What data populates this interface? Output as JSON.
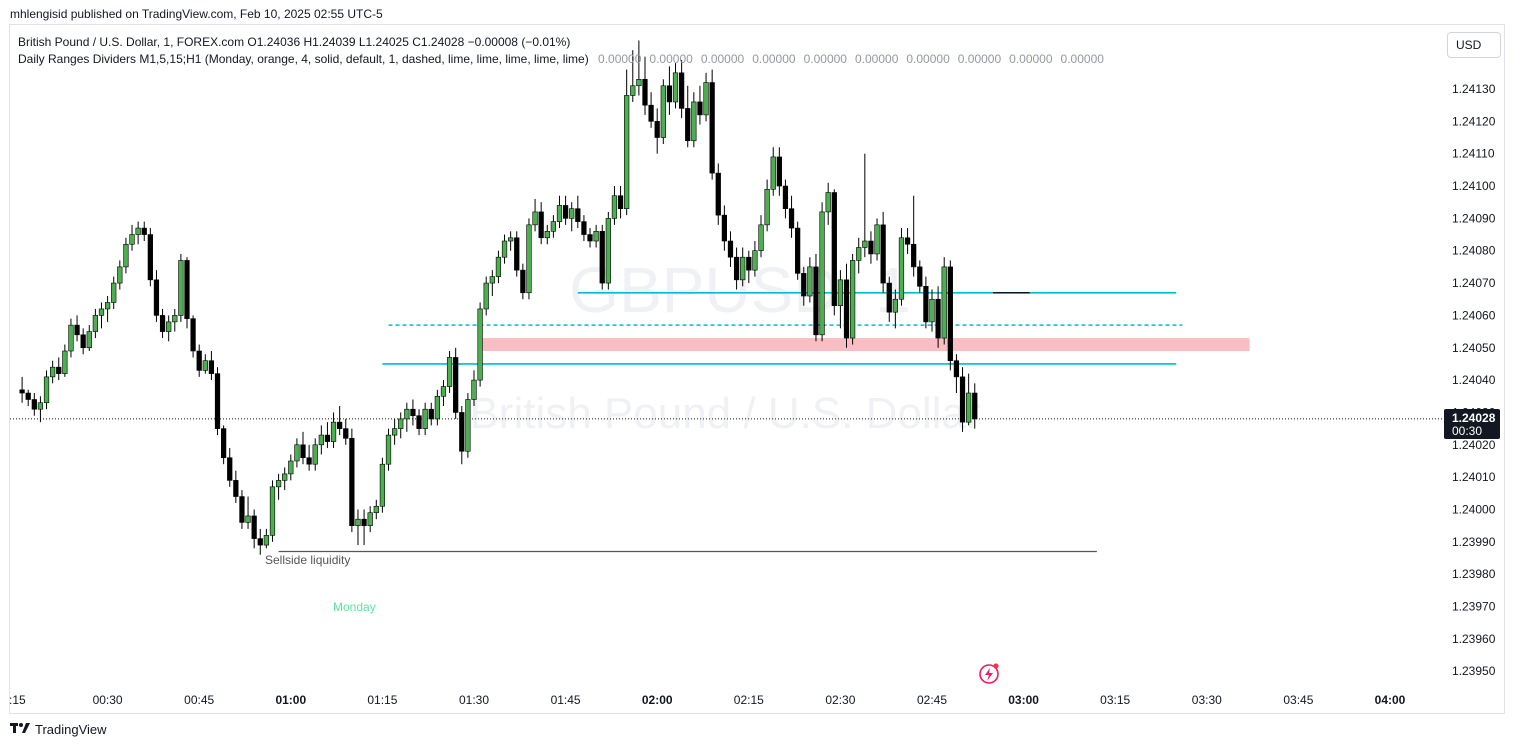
{
  "publish_line": "mhlengisid published on TradingView.com, Feb 10, 2025 02:55 UTC-5",
  "legend": {
    "symbol_line": "British Pound / U.S. Dollar, 1, FOREX.com  O1.24036  H1.24039  L1.24025  C1.24028  −0.00008 (−0.01%)",
    "indicator_line": "Daily Ranges Dividers M1,5,15;H1 (Monday, orange, 4, solid, default, 1, dashed, lime, lime, lime, lime, lime)",
    "indicator_values": [
      "0.00000",
      "0.00000",
      "0.00000",
      "0.00000",
      "0.00000",
      "0.00000",
      "0.00000",
      "0.00000",
      "0.00000",
      "0.00000"
    ]
  },
  "currency_button": "USD",
  "watermark": {
    "ticker": "GBPUSD, 1",
    "name": "British Pound / U.S. Dollar"
  },
  "annotations": {
    "sellside": "Sellside liquidity",
    "day_label": "Monday"
  },
  "price_label": {
    "price": "1.24028",
    "countdown": "00:30"
  },
  "footer": {
    "brand": "TradingView"
  },
  "colors": {
    "bull": "#4caf50",
    "bear": "#000000",
    "level": "#00bcd4",
    "zone": "#f8bbc0",
    "day": "#5fe3a1",
    "spark": "#e91e63"
  },
  "chart_data": {
    "type": "candlestick",
    "symbol": "British Pound / U.S. Dollar",
    "interval": "1",
    "ylim": [
      1.23942,
      1.24147
    ],
    "y_ticks": [
      "1.24130",
      "1.24120",
      "1.24110",
      "1.24100",
      "1.24090",
      "1.24080",
      "1.24070",
      "1.24060",
      "1.24050",
      "1.24040",
      "1.24030",
      "1.24020",
      "1.24010",
      "1.24000",
      "1.23990",
      "1.23980",
      "1.23970",
      "1.23960",
      "1.23950"
    ],
    "x_ticks": [
      {
        "label": ":15",
        "bold": false
      },
      {
        "label": "00:30",
        "bold": false
      },
      {
        "label": "00:45",
        "bold": false
      },
      {
        "label": "01:00",
        "bold": true
      },
      {
        "label": "01:15",
        "bold": false
      },
      {
        "label": "01:30",
        "bold": false
      },
      {
        "label": "01:45",
        "bold": false
      },
      {
        "label": "02:00",
        "bold": true
      },
      {
        "label": "02:15",
        "bold": false
      },
      {
        "label": "02:30",
        "bold": false
      },
      {
        "label": "02:45",
        "bold": false
      },
      {
        "label": "03:00",
        "bold": true
      },
      {
        "label": "03:15",
        "bold": false
      },
      {
        "label": "03:30",
        "bold": false
      },
      {
        "label": "03:45",
        "bold": false
      },
      {
        "label": "04:00",
        "bold": true
      }
    ],
    "first_bar_time": "00:16",
    "last_close": 1.24028,
    "levels": [
      {
        "price": 1.24067,
        "from": "01:47",
        "to": "03:25",
        "style": "solid"
      },
      {
        "price": 1.24045,
        "from": "01:15",
        "to": "03:25",
        "style": "solid"
      },
      {
        "price": 1.24057,
        "from": "01:16",
        "to": "03:26",
        "style": "dashed"
      },
      {
        "price": 1.23987,
        "from": "00:58",
        "to": "03:12",
        "style": "solid",
        "color": "#555555"
      },
      {
        "price": 1.24067,
        "from": "02:55",
        "to": "03:01",
        "style": "solid",
        "color": "#000000"
      }
    ],
    "zone": {
      "top": 1.24053,
      "bottom": 1.24049,
      "from": "01:31",
      "to": "03:37"
    },
    "bars": [
      [
        1.24037,
        1.24041,
        1.24033,
        1.24036
      ],
      [
        1.24036,
        1.24037,
        1.24032,
        1.24034
      ],
      [
        1.24034,
        1.24036,
        1.24029,
        1.24031
      ],
      [
        1.24031,
        1.24035,
        1.24027,
        1.24033
      ],
      [
        1.24033,
        1.24043,
        1.24031,
        1.24041
      ],
      [
        1.24041,
        1.24046,
        1.24039,
        1.24044
      ],
      [
        1.24044,
        1.24047,
        1.2404,
        1.24042
      ],
      [
        1.24042,
        1.24051,
        1.24041,
        1.24049
      ],
      [
        1.24049,
        1.24059,
        1.24047,
        1.24057
      ],
      [
        1.24057,
        1.2406,
        1.24052,
        1.24054
      ],
      [
        1.24054,
        1.24056,
        1.24048,
        1.2405
      ],
      [
        1.2405,
        1.24057,
        1.24049,
        1.24055
      ],
      [
        1.24055,
        1.24062,
        1.24053,
        1.2406
      ],
      [
        1.2406,
        1.24064,
        1.24056,
        1.24062
      ],
      [
        1.24062,
        1.24066,
        1.24058,
        1.24064
      ],
      [
        1.24064,
        1.24072,
        1.24062,
        1.2407
      ],
      [
        1.2407,
        1.24077,
        1.24068,
        1.24075
      ],
      [
        1.24075,
        1.24084,
        1.24073,
        1.24082
      ],
      [
        1.24082,
        1.24088,
        1.2408,
        1.24085
      ],
      [
        1.24085,
        1.24089,
        1.24082,
        1.24087
      ],
      [
        1.24087,
        1.24089,
        1.24083,
        1.24085
      ],
      [
        1.24085,
        1.24087,
        1.24069,
        1.24071
      ],
      [
        1.24071,
        1.24074,
        1.24058,
        1.2406
      ],
      [
        1.2406,
        1.24062,
        1.24053,
        1.24055
      ],
      [
        1.24055,
        1.2406,
        1.24052,
        1.24058
      ],
      [
        1.24058,
        1.24062,
        1.24055,
        1.2406
      ],
      [
        1.2406,
        1.24079,
        1.24058,
        1.24077
      ],
      [
        1.24077,
        1.24078,
        1.24056,
        1.24059
      ],
      [
        1.24059,
        1.2406,
        1.24047,
        1.24049
      ],
      [
        1.24049,
        1.24051,
        1.24041,
        1.24043
      ],
      [
        1.24043,
        1.24048,
        1.24042,
        1.24046
      ],
      [
        1.24046,
        1.24049,
        1.2404,
        1.24042
      ],
      [
        1.24042,
        1.24044,
        1.24023,
        1.24025
      ],
      [
        1.24025,
        1.24026,
        1.24014,
        1.24016
      ],
      [
        1.24016,
        1.24019,
        1.24007,
        1.24009
      ],
      [
        1.24009,
        1.24012,
        1.24002,
        1.24004
      ],
      [
        1.24004,
        1.24006,
        1.23994,
        1.23996
      ],
      [
        1.23996,
        1.24004,
        1.23994,
        1.23998
      ],
      [
        1.23998,
        1.24,
        1.23988,
        1.23991
      ],
      [
        1.23991,
        1.23994,
        1.23986,
        1.23989
      ],
      [
        1.23989,
        1.23994,
        1.23988,
        1.23992
      ],
      [
        1.23992,
        1.24009,
        1.2399,
        1.24007
      ],
      [
        1.24007,
        1.24011,
        1.24003,
        1.24009
      ],
      [
        1.24009,
        1.24013,
        1.24006,
        1.24011
      ],
      [
        1.24011,
        1.24017,
        1.24009,
        1.24015
      ],
      [
        1.24015,
        1.24022,
        1.24013,
        1.2402
      ],
      [
        1.2402,
        1.24024,
        1.24014,
        1.24016
      ],
      [
        1.24016,
        1.2402,
        1.24012,
        1.24014
      ],
      [
        1.24014,
        1.24022,
        1.24012,
        1.2402
      ],
      [
        1.2402,
        1.24026,
        1.24017,
        1.24023
      ],
      [
        1.24023,
        1.24027,
        1.24019,
        1.24021
      ],
      [
        1.24021,
        1.2403,
        1.24019,
        1.24027
      ],
      [
        1.24027,
        1.24032,
        1.24023,
        1.24025
      ],
      [
        1.24025,
        1.24028,
        1.2402,
        1.24022
      ],
      [
        1.24022,
        1.24025,
        1.23993,
        1.23995
      ],
      [
        1.23995,
        1.24,
        1.23989,
        1.23997
      ],
      [
        1.23997,
        1.24,
        1.23989,
        1.23995
      ],
      [
        1.23995,
        1.24001,
        1.23993,
        1.23999
      ],
      [
        1.23999,
        1.24003,
        1.23997,
        1.24001
      ],
      [
        1.24001,
        1.24016,
        1.23999,
        1.24014
      ],
      [
        1.24014,
        1.24025,
        1.24012,
        1.24023
      ],
      [
        1.24023,
        1.24028,
        1.2402,
        1.24025
      ],
      [
        1.24025,
        1.2403,
        1.24022,
        1.24028
      ],
      [
        1.24028,
        1.24033,
        1.24024,
        1.24031
      ],
      [
        1.24031,
        1.24034,
        1.24026,
        1.24029
      ],
      [
        1.24029,
        1.24031,
        1.24023,
        1.24025
      ],
      [
        1.24025,
        1.24033,
        1.24023,
        1.24031
      ],
      [
        1.24031,
        1.24033,
        1.24026,
        1.24028
      ],
      [
        1.24028,
        1.24037,
        1.24026,
        1.24035
      ],
      [
        1.24035,
        1.2404,
        1.24032,
        1.24038
      ],
      [
        1.24038,
        1.24049,
        1.24036,
        1.24047
      ],
      [
        1.24047,
        1.2405,
        1.24028,
        1.2403
      ],
      [
        1.2403,
        1.24032,
        1.24014,
        1.24018
      ],
      [
        1.24018,
        1.24036,
        1.24016,
        1.24034
      ],
      [
        1.24034,
        1.24043,
        1.24032,
        1.2404
      ],
      [
        1.2404,
        1.24064,
        1.24038,
        1.24062
      ],
      [
        1.24062,
        1.24072,
        1.2406,
        1.2407
      ],
      [
        1.2407,
        1.24074,
        1.24066,
        1.24072
      ],
      [
        1.24072,
        1.2408,
        1.2407,
        1.24078
      ],
      [
        1.24078,
        1.24085,
        1.24076,
        1.24083
      ],
      [
        1.24083,
        1.24086,
        1.2408,
        1.24084
      ],
      [
        1.24084,
        1.24086,
        1.24072,
        1.24074
      ],
      [
        1.24074,
        1.24076,
        1.24065,
        1.24067
      ],
      [
        1.24067,
        1.2409,
        1.24065,
        1.24088
      ],
      [
        1.24088,
        1.24096,
        1.24086,
        1.24092
      ],
      [
        1.24092,
        1.24095,
        1.24082,
        1.24084
      ],
      [
        1.24084,
        1.24088,
        1.24082,
        1.24086
      ],
      [
        1.24086,
        1.24091,
        1.24084,
        1.24089
      ],
      [
        1.24089,
        1.24097,
        1.24087,
        1.24094
      ],
      [
        1.24094,
        1.24097,
        1.24088,
        1.2409
      ],
      [
        1.2409,
        1.24095,
        1.24086,
        1.24093
      ],
      [
        1.24093,
        1.24097,
        1.24087,
        1.24089
      ],
      [
        1.24089,
        1.24091,
        1.24083,
        1.24085
      ],
      [
        1.24085,
        1.24087,
        1.24081,
        1.24083
      ],
      [
        1.24083,
        1.24088,
        1.24081,
        1.24086
      ],
      [
        1.24086,
        1.24088,
        1.24068,
        1.2407
      ],
      [
        1.2407,
        1.24092,
        1.24068,
        1.2409
      ],
      [
        1.2409,
        1.241,
        1.24088,
        1.24097
      ],
      [
        1.24097,
        1.241,
        1.2409,
        1.24093
      ],
      [
        1.24093,
        1.24136,
        1.24091,
        1.24128
      ],
      [
        1.24128,
        1.24142,
        1.24126,
        1.24131
      ],
      [
        1.24131,
        1.24145,
        1.24128,
        1.24133
      ],
      [
        1.24133,
        1.2414,
        1.24122,
        1.24125
      ],
      [
        1.24125,
        1.24129,
        1.24118,
        1.2412
      ],
      [
        1.2412,
        1.24124,
        1.2411,
        1.24115
      ],
      [
        1.24115,
        1.24133,
        1.24113,
        1.24131
      ],
      [
        1.24131,
        1.24137,
        1.24122,
        1.24126
      ],
      [
        1.24126,
        1.24138,
        1.24124,
        1.24135
      ],
      [
        1.24135,
        1.24139,
        1.24121,
        1.24124
      ],
      [
        1.24124,
        1.24131,
        1.24112,
        1.24114
      ],
      [
        1.24114,
        1.24129,
        1.24112,
        1.24126
      ],
      [
        1.24126,
        1.24131,
        1.24119,
        1.24122
      ],
      [
        1.24122,
        1.24135,
        1.2412,
        1.24132
      ],
      [
        1.24132,
        1.24136,
        1.24102,
        1.24104
      ],
      [
        1.24104,
        1.24107,
        1.24088,
        1.24091
      ],
      [
        1.24091,
        1.24094,
        1.2408,
        1.24083
      ],
      [
        1.24083,
        1.24086,
        1.24075,
        1.24078
      ],
      [
        1.24078,
        1.24081,
        1.24068,
        1.24071
      ],
      [
        1.24071,
        1.24081,
        1.24069,
        1.24078
      ],
      [
        1.24078,
        1.2408,
        1.2407,
        1.24074
      ],
      [
        1.24074,
        1.24083,
        1.24072,
        1.2408
      ],
      [
        1.2408,
        1.24091,
        1.24078,
        1.24088
      ],
      [
        1.24088,
        1.24102,
        1.24086,
        1.24099
      ],
      [
        1.24099,
        1.24112,
        1.24097,
        1.24109
      ],
      [
        1.24109,
        1.24112,
        1.24097,
        1.241
      ],
      [
        1.241,
        1.24102,
        1.2409,
        1.24093
      ],
      [
        1.24093,
        1.24097,
        1.24084,
        1.24087
      ],
      [
        1.24087,
        1.24089,
        1.24071,
        1.24073
      ],
      [
        1.24073,
        1.24075,
        1.24063,
        1.24066
      ],
      [
        1.24066,
        1.24078,
        1.24064,
        1.24075
      ],
      [
        1.24075,
        1.24079,
        1.24052,
        1.24054
      ],
      [
        1.24054,
        1.24095,
        1.24052,
        1.24092
      ],
      [
        1.24092,
        1.24101,
        1.24088,
        1.24098
      ],
      [
        1.24098,
        1.24099,
        1.2406,
        1.24063
      ],
      [
        1.24063,
        1.24074,
        1.24056,
        1.24071
      ],
      [
        1.24071,
        1.24076,
        1.2405,
        1.24053
      ],
      [
        1.24053,
        1.24079,
        1.24051,
        1.24077
      ],
      [
        1.24077,
        1.24084,
        1.24073,
        1.24081
      ],
      [
        1.24081,
        1.2411,
        1.24078,
        1.24083
      ],
      [
        1.24083,
        1.24086,
        1.24076,
        1.24079
      ],
      [
        1.24079,
        1.2409,
        1.24077,
        1.24088
      ],
      [
        1.24088,
        1.24092,
        1.24067,
        1.2407
      ],
      [
        1.2407,
        1.24072,
        1.24058,
        1.24061
      ],
      [
        1.24061,
        1.24068,
        1.24056,
        1.24065
      ],
      [
        1.24065,
        1.24087,
        1.24063,
        1.24084
      ],
      [
        1.24084,
        1.24087,
        1.24079,
        1.24082
      ],
      [
        1.24082,
        1.24097,
        1.24072,
        1.24075
      ],
      [
        1.24075,
        1.24077,
        1.24067,
        1.24069
      ],
      [
        1.24069,
        1.24072,
        1.24056,
        1.24058
      ],
      [
        1.24058,
        1.24068,
        1.24055,
        1.24065
      ],
      [
        1.24065,
        1.24069,
        1.2405,
        1.24053
      ],
      [
        1.24053,
        1.24078,
        1.24051,
        1.24075
      ],
      [
        1.24075,
        1.24077,
        1.24043,
        1.24046
      ],
      [
        1.24046,
        1.24048,
        1.24036,
        1.24041
      ],
      [
        1.24041,
        1.24044,
        1.24024,
        1.24027
      ],
      [
        1.24027,
        1.24042,
        1.24026,
        1.24036
      ],
      [
        1.24036,
        1.24039,
        1.24025,
        1.24028
      ]
    ]
  }
}
